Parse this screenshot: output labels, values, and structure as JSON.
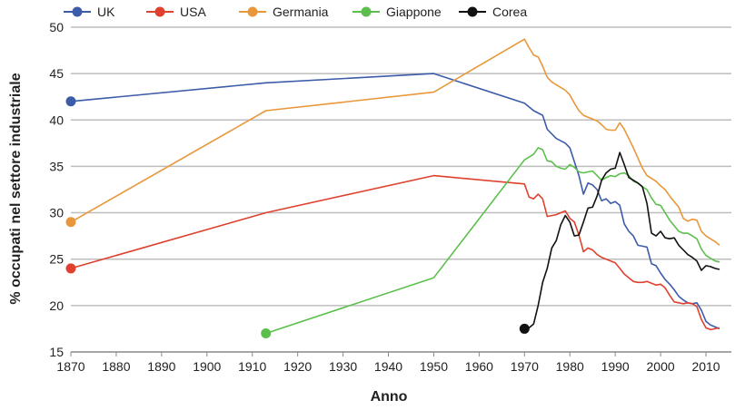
{
  "chart_data": {
    "type": "line",
    "title": "",
    "xlabel": "Anno",
    "ylabel": "% occupati nel settore industriale",
    "xlim": [
      1870,
      2013
    ],
    "ylim": [
      15,
      50
    ],
    "xticks": [
      1870,
      1880,
      1890,
      1900,
      1910,
      1920,
      1930,
      1940,
      1950,
      1960,
      1970,
      1980,
      1990,
      2000,
      2010
    ],
    "yticks": [
      15,
      20,
      25,
      30,
      35,
      40,
      45,
      50
    ],
    "grid": "horizontal",
    "legend": "top",
    "series": [
      {
        "name": "UK",
        "color": "#3c5ba8",
        "x": [
          1870,
          1913,
          1950,
          1970,
          1972,
          1974,
          1975,
          1977,
          1979,
          1980,
          1981,
          1982,
          1983,
          1984,
          1985,
          1986,
          1987,
          1988,
          1989,
          1990,
          1991,
          1992,
          1993,
          1994,
          1995,
          1996,
          1997,
          1998,
          1999,
          2000,
          2001,
          2002,
          2003,
          2004,
          2005,
          2006,
          2007,
          2008,
          2009,
          2010,
          2011,
          2012,
          2013
        ],
        "y": [
          42,
          44,
          45,
          41.8,
          41,
          40.5,
          39,
          38,
          37.5,
          37,
          35.5,
          34,
          32,
          33.2,
          33,
          32.5,
          31.3,
          31.5,
          31,
          31.2,
          30.8,
          28.8,
          28,
          27.5,
          26.5,
          26.4,
          26.3,
          24.5,
          24.3,
          23.5,
          22.8,
          22.3,
          21.7,
          21,
          20.6,
          20.3,
          20.2,
          20.3,
          19.5,
          18.3,
          17.9,
          17.7,
          17.5
        ]
      },
      {
        "name": "USA",
        "color": "#e0402e",
        "x": [
          1870,
          1913,
          1950,
          1970,
          1971,
          1972,
          1973,
          1974,
          1975,
          1976,
          1977,
          1978,
          1979,
          1980,
          1981,
          1982,
          1983,
          1984,
          1985,
          1986,
          1987,
          1988,
          1989,
          1990,
          1991,
          1992,
          1993,
          1994,
          1995,
          1996,
          1997,
          1998,
          1999,
          2000,
          2001,
          2002,
          2003,
          2004,
          2005,
          2006,
          2007,
          2008,
          2009,
          2010,
          2011,
          2012,
          2013
        ],
        "y": [
          24,
          30,
          34,
          33.1,
          31.7,
          31.5,
          32,
          31.5,
          29.6,
          29.7,
          29.8,
          30,
          30.2,
          29.4,
          29,
          27.6,
          25.8,
          26.2,
          26,
          25.5,
          25.2,
          25,
          24.8,
          24.6,
          24,
          23.4,
          23,
          22.6,
          22.5,
          22.5,
          22.6,
          22.4,
          22.2,
          22.3,
          21.9,
          21.1,
          20.4,
          20.3,
          20.2,
          20.3,
          20.2,
          19.9,
          18.5,
          17.6,
          17.4,
          17.5,
          17.6
        ]
      },
      {
        "name": "Germania",
        "color": "#e8973a",
        "x": [
          1870,
          1913,
          1950,
          1970,
          1971,
          1972,
          1973,
          1974,
          1975,
          1976,
          1977,
          1978,
          1979,
          1980,
          1981,
          1982,
          1983,
          1984,
          1985,
          1986,
          1987,
          1988,
          1989,
          1990,
          1991,
          1992,
          1993,
          1994,
          1995,
          1996,
          1997,
          1998,
          1999,
          2000,
          2001,
          2002,
          2003,
          2004,
          2005,
          2006,
          2007,
          2008,
          2009,
          2010,
          2011,
          2012,
          2013
        ],
        "y": [
          29,
          41,
          43,
          48.7,
          47.8,
          47,
          46.8,
          45.8,
          44.6,
          44.1,
          43.8,
          43.5,
          43.2,
          42.7,
          41.8,
          41,
          40.5,
          40.3,
          40.1,
          39.9,
          39.5,
          39,
          38.9,
          38.9,
          39.7,
          39,
          38,
          37,
          35.9,
          34.8,
          34,
          33.7,
          33.4,
          32.9,
          32.5,
          31.8,
          31.2,
          30.6,
          29.4,
          29.1,
          29.3,
          29.2,
          28,
          27.5,
          27.2,
          26.9,
          26.5
        ]
      },
      {
        "name": "Giappone",
        "color": "#5cbf4d",
        "x": [
          1913,
          1950,
          1970,
          1971,
          1972,
          1973,
          1974,
          1975,
          1976,
          1977,
          1978,
          1979,
          1980,
          1981,
          1982,
          1983,
          1984,
          1985,
          1986,
          1987,
          1988,
          1989,
          1990,
          1991,
          1992,
          1993,
          1994,
          1995,
          1996,
          1997,
          1998,
          1999,
          2000,
          2001,
          2002,
          2003,
          2004,
          2005,
          2006,
          2007,
          2008,
          2009,
          2010,
          2011,
          2012,
          2013
        ],
        "y": [
          17,
          23,
          35.7,
          36,
          36.3,
          37,
          36.8,
          35.6,
          35.5,
          35,
          34.8,
          34.7,
          35.2,
          34.9,
          34.4,
          34.3,
          34.4,
          34.5,
          34,
          33.5,
          33.8,
          34,
          33.9,
          34.2,
          34.3,
          34,
          33.4,
          33.2,
          32.8,
          32.5,
          31.6,
          30.9,
          30.8,
          30,
          29.2,
          28.6,
          28,
          27.8,
          27.8,
          27.5,
          27.2,
          26.1,
          25.4,
          25.1,
          24.8,
          24.7
        ]
      },
      {
        "name": "Corea",
        "color": "#111111",
        "x": [
          1970,
          1971,
          1972,
          1973,
          1974,
          1975,
          1976,
          1977,
          1978,
          1979,
          1980,
          1981,
          1982,
          1983,
          1984,
          1985,
          1986,
          1987,
          1988,
          1989,
          1990,
          1991,
          1992,
          1993,
          1994,
          1995,
          1996,
          1997,
          1998,
          1999,
          2000,
          2001,
          2002,
          2003,
          2004,
          2005,
          2006,
          2007,
          2008,
          2009,
          2010,
          2011,
          2012,
          2013
        ],
        "y": [
          17.5,
          17.6,
          18,
          20,
          22.5,
          24,
          26.2,
          27,
          28.7,
          29.7,
          29,
          27.5,
          27.6,
          29,
          30.5,
          30.6,
          31.8,
          33.5,
          34.3,
          34.7,
          34.8,
          36.5,
          35.2,
          33.8,
          33.5,
          33.2,
          32.8,
          31,
          27.8,
          27.5,
          28,
          27.3,
          27.2,
          27.3,
          26.5,
          26,
          25.5,
          25.2,
          24.8,
          23.8,
          24.3,
          24.2,
          24,
          23.9
        ]
      }
    ]
  }
}
